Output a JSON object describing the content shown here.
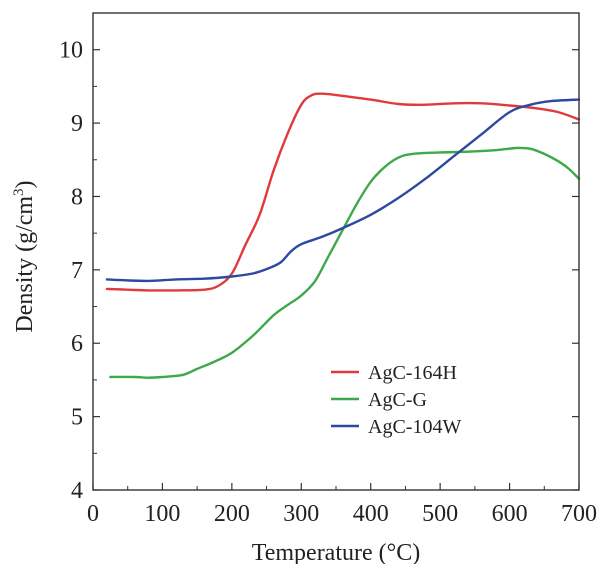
{
  "chart_data": {
    "type": "line",
    "xlabel": "Temperature (°C)",
    "ylabel_main": "Density  (g/cm",
    "ylabel_sup": "3",
    "ylabel_close": ")",
    "xlim": [
      0,
      700
    ],
    "ylim": [
      4,
      10.5
    ],
    "xticks": [
      0,
      100,
      200,
      300,
      400,
      500,
      600,
      700
    ],
    "yticks": [
      4,
      5,
      6,
      7,
      8,
      9,
      10
    ],
    "grid": false,
    "legend_position": "bottom-right",
    "series": [
      {
        "name": "AgC-164H",
        "color": "#e03a3e",
        "points": [
          [
            20,
            6.74
          ],
          [
            50,
            6.73
          ],
          [
            80,
            6.72
          ],
          [
            120,
            6.72
          ],
          [
            160,
            6.73
          ],
          [
            180,
            6.78
          ],
          [
            200,
            6.95
          ],
          [
            220,
            7.35
          ],
          [
            240,
            7.75
          ],
          [
            260,
            8.35
          ],
          [
            280,
            8.85
          ],
          [
            300,
            9.25
          ],
          [
            315,
            9.38
          ],
          [
            330,
            9.4
          ],
          [
            360,
            9.37
          ],
          [
            400,
            9.32
          ],
          [
            440,
            9.26
          ],
          [
            480,
            9.25
          ],
          [
            520,
            9.27
          ],
          [
            560,
            9.27
          ],
          [
            600,
            9.24
          ],
          [
            640,
            9.2
          ],
          [
            670,
            9.15
          ],
          [
            700,
            9.05
          ]
        ]
      },
      {
        "name": "AgC-G",
        "color": "#3ea84a",
        "points": [
          [
            25,
            5.54
          ],
          [
            60,
            5.54
          ],
          [
            80,
            5.53
          ],
          [
            100,
            5.54
          ],
          [
            130,
            5.57
          ],
          [
            150,
            5.65
          ],
          [
            175,
            5.75
          ],
          [
            200,
            5.87
          ],
          [
            230,
            6.1
          ],
          [
            260,
            6.38
          ],
          [
            280,
            6.52
          ],
          [
            300,
            6.65
          ],
          [
            320,
            6.85
          ],
          [
            340,
            7.2
          ],
          [
            360,
            7.55
          ],
          [
            380,
            7.9
          ],
          [
            400,
            8.2
          ],
          [
            420,
            8.4
          ],
          [
            440,
            8.53
          ],
          [
            460,
            8.58
          ],
          [
            500,
            8.6
          ],
          [
            540,
            8.61
          ],
          [
            580,
            8.63
          ],
          [
            610,
            8.66
          ],
          [
            630,
            8.65
          ],
          [
            650,
            8.58
          ],
          [
            670,
            8.48
          ],
          [
            685,
            8.38
          ],
          [
            700,
            8.24
          ]
        ]
      },
      {
        "name": "AgC-104W",
        "color": "#2b4aa0",
        "points": [
          [
            20,
            6.87
          ],
          [
            40,
            6.86
          ],
          [
            80,
            6.85
          ],
          [
            120,
            6.87
          ],
          [
            160,
            6.88
          ],
          [
            200,
            6.91
          ],
          [
            230,
            6.95
          ],
          [
            250,
            7.01
          ],
          [
            270,
            7.1
          ],
          [
            285,
            7.25
          ],
          [
            300,
            7.35
          ],
          [
            330,
            7.45
          ],
          [
            360,
            7.57
          ],
          [
            400,
            7.75
          ],
          [
            440,
            7.98
          ],
          [
            480,
            8.25
          ],
          [
            520,
            8.55
          ],
          [
            560,
            8.85
          ],
          [
            600,
            9.15
          ],
          [
            630,
            9.25
          ],
          [
            660,
            9.3
          ],
          [
            700,
            9.32
          ]
        ]
      }
    ]
  }
}
